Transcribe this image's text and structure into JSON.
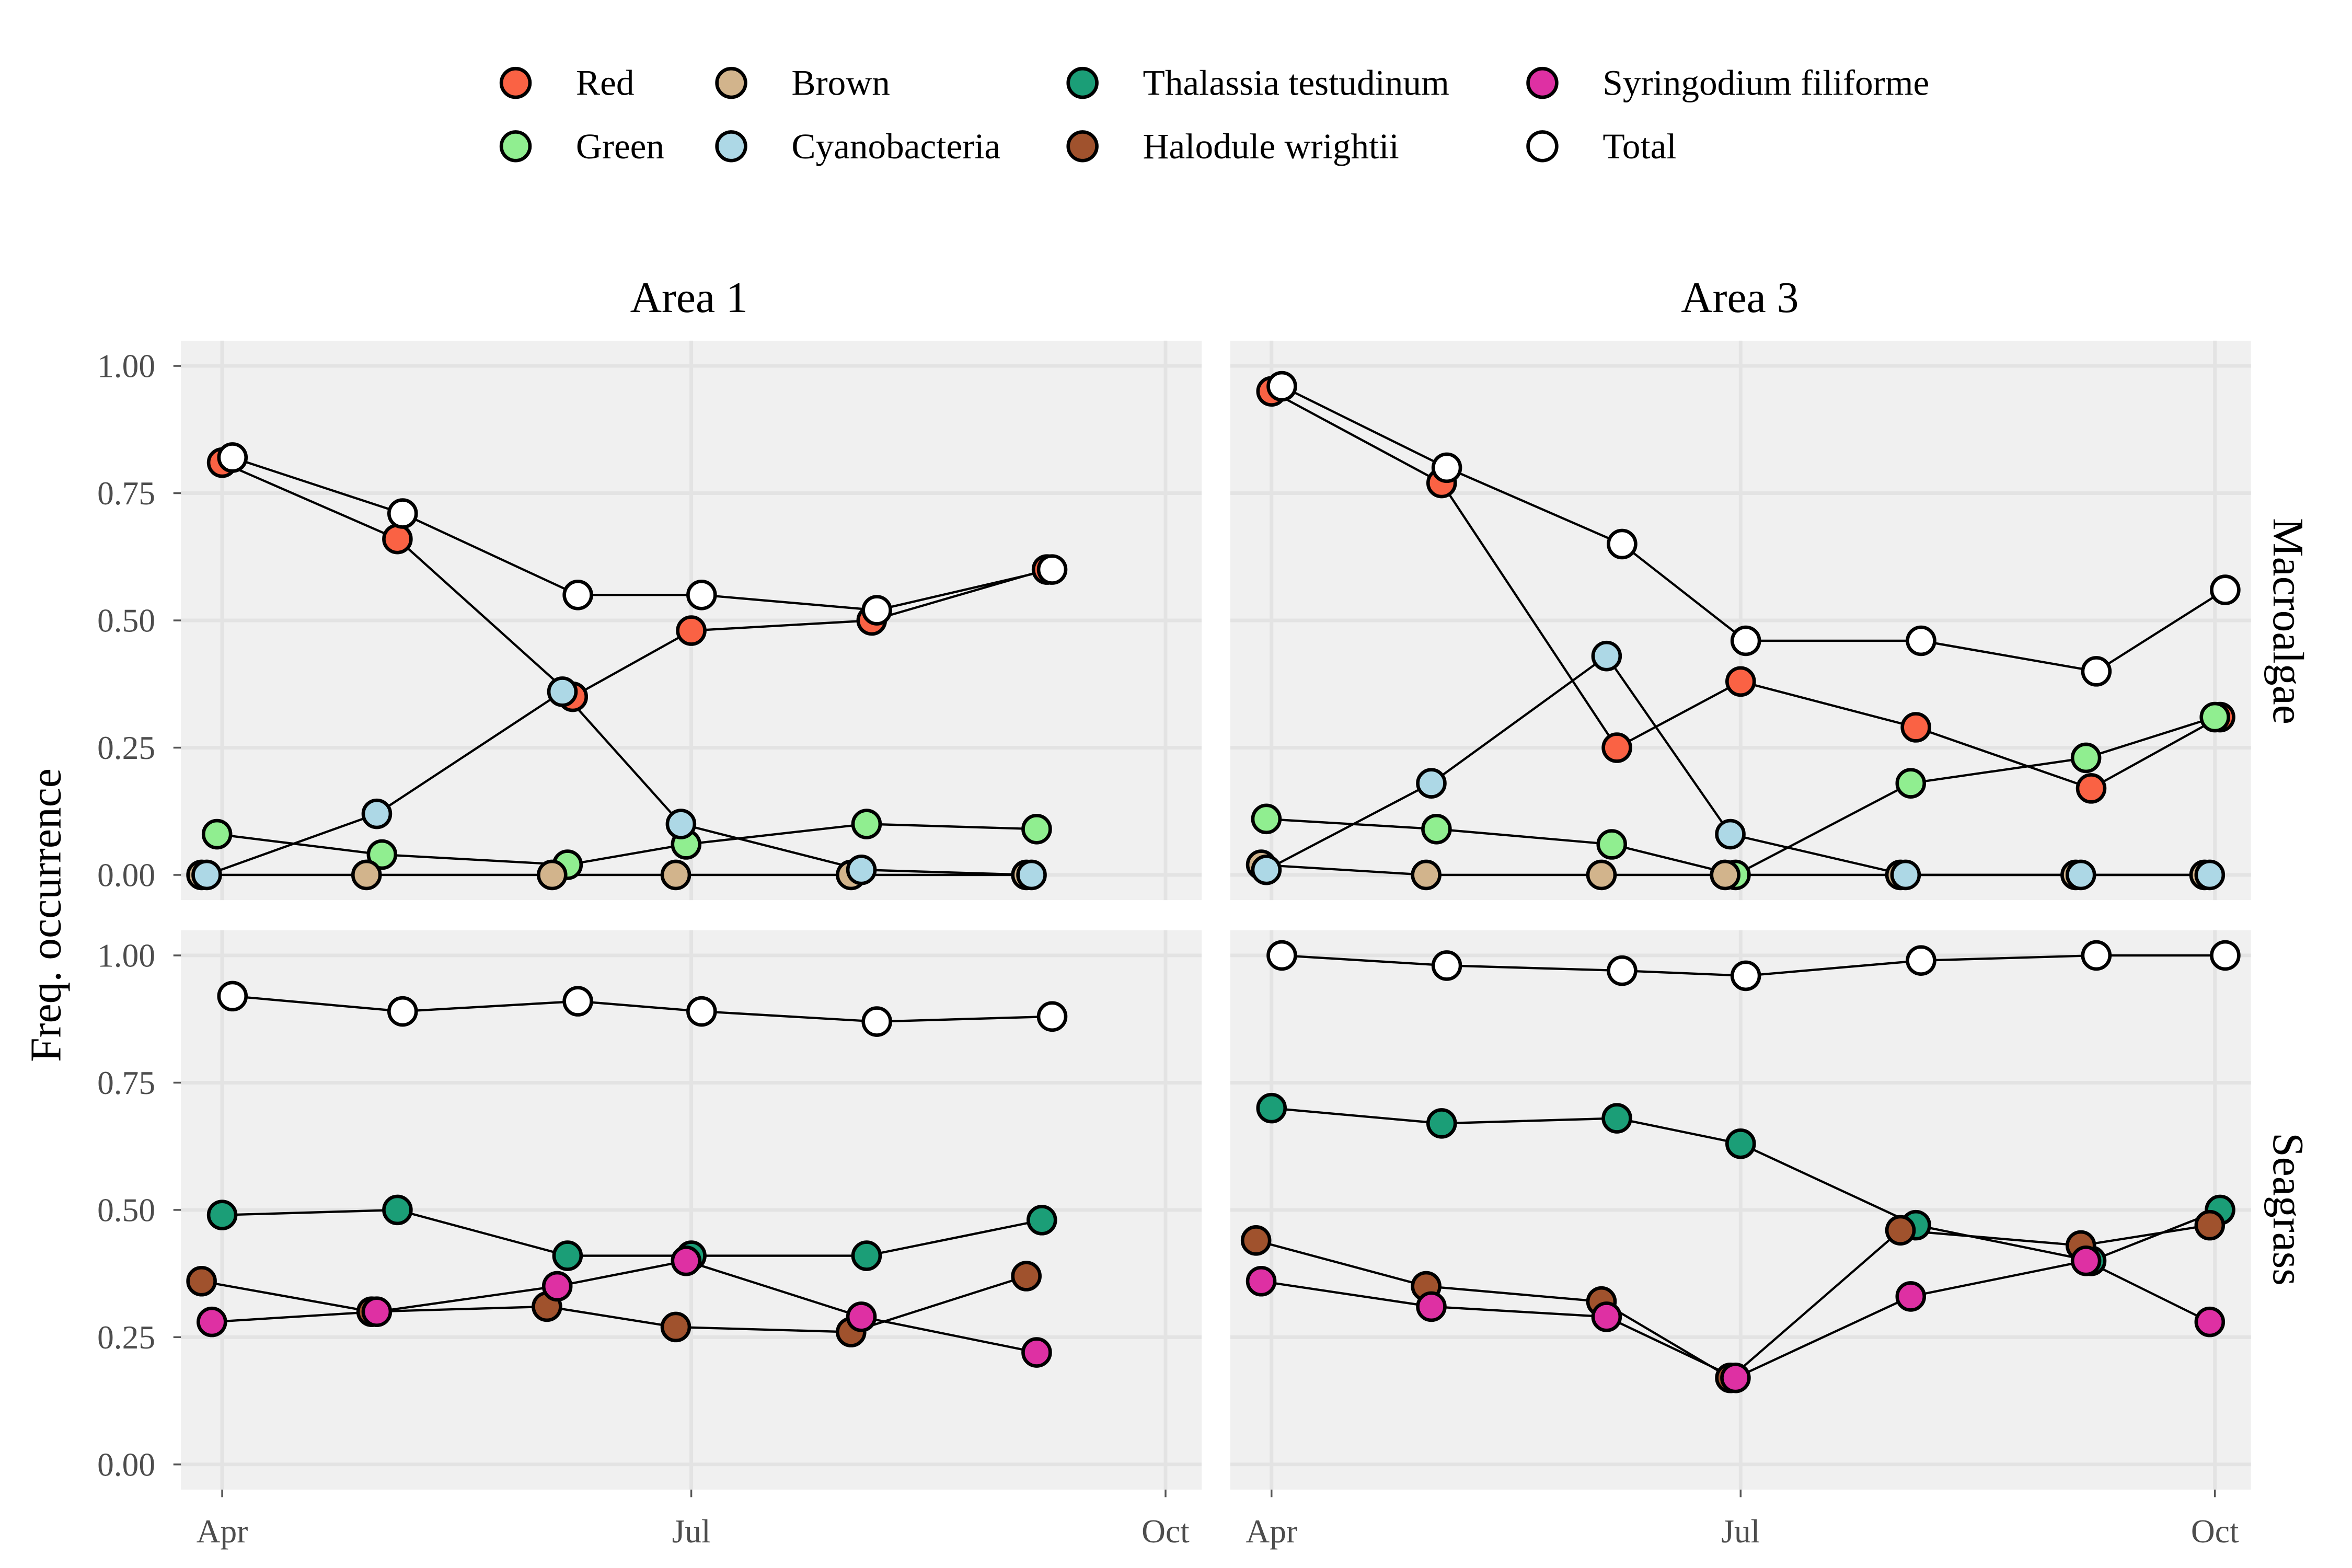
{
  "chart_data": {
    "type": "scatter",
    "ylabel": "Freq. occurrence",
    "xlabel": "",
    "x_ticks": [
      "Apr",
      "Jul",
      "Oct"
    ],
    "y_ticks": [
      "0.00",
      "0.25",
      "0.50",
      "0.75",
      "1.00"
    ],
    "ylim": [
      0,
      1
    ],
    "xlim": [
      "2021-03-24",
      "2021-10-08"
    ],
    "grid": true,
    "legend_position": "top",
    "column_strips": [
      "Area 1",
      "Area 3"
    ],
    "row_strips": [
      "Macroalgae",
      "Seagrass"
    ],
    "legend": [
      {
        "name": "Red",
        "color": "#FA6244"
      },
      {
        "name": "Green",
        "color": "#90EE90"
      },
      {
        "name": "Brown",
        "color": "#D2B48C"
      },
      {
        "name": "Cyanobacteria",
        "color": "#ADD8E6"
      },
      {
        "name": "Thalassia testudinum",
        "color": "#1B9E77"
      },
      {
        "name": "Halodule wrightii",
        "color": "#A0522D"
      },
      {
        "name": "Syringodium filiforme",
        "color": "#DE30A3"
      },
      {
        "name": "Total",
        "color": "#FFFFFF"
      }
    ],
    "panels": [
      {
        "area": "Area 1",
        "group": "Macroalgae",
        "series": [
          {
            "name": "Red",
            "color": "#FA6244",
            "x": [
              "2021-04-01",
              "2021-05-05",
              "2021-06-08",
              "2021-07-01",
              "2021-08-05",
              "2021-09-08"
            ],
            "y": [
              0.81,
              0.66,
              0.35,
              0.48,
              0.5,
              0.6
            ]
          },
          {
            "name": "Green",
            "color": "#90EE90",
            "x": [
              "2021-03-31",
              "2021-05-02",
              "2021-06-07",
              "2021-06-30",
              "2021-08-04",
              "2021-09-06"
            ],
            "y": [
              0.08,
              0.04,
              0.02,
              0.06,
              0.1,
              0.09
            ]
          },
          {
            "name": "Brown",
            "color": "#D2B48C",
            "x": [
              "2021-03-28",
              "2021-04-29",
              "2021-06-04",
              "2021-06-28",
              "2021-08-01",
              "2021-09-04"
            ],
            "y": [
              0.0,
              0.0,
              0.0,
              0.0,
              0.0,
              0.0
            ]
          },
          {
            "name": "Cyanobacteria",
            "color": "#ADD8E6",
            "x": [
              "2021-03-29",
              "2021-05-01",
              "2021-06-06",
              "2021-06-29",
              "2021-08-03",
              "2021-09-05"
            ],
            "y": [
              0.0,
              0.12,
              0.36,
              0.1,
              0.01,
              0.0
            ]
          },
          {
            "name": "Total",
            "color": "#FFFFFF",
            "x": [
              "2021-04-03",
              "2021-05-06",
              "2021-06-09",
              "2021-07-03",
              "2021-08-06",
              "2021-09-09"
            ],
            "y": [
              0.82,
              0.71,
              0.55,
              0.55,
              0.52,
              0.6
            ]
          }
        ]
      },
      {
        "area": "Area 3",
        "group": "Macroalgae",
        "series": [
          {
            "name": "Red",
            "color": "#FA6244",
            "x": [
              "2021-04-01",
              "2021-05-04",
              "2021-06-07",
              "2021-07-01",
              "2021-08-04",
              "2021-09-07",
              "2021-10-02"
            ],
            "y": [
              0.95,
              0.77,
              0.25,
              0.38,
              0.29,
              0.17,
              0.31
            ]
          },
          {
            "name": "Green",
            "color": "#90EE90",
            "x": [
              "2021-03-31",
              "2021-05-03",
              "2021-06-06",
              "2021-06-30",
              "2021-08-03",
              "2021-09-06",
              "2021-10-01"
            ],
            "y": [
              0.11,
              0.09,
              0.06,
              0.0,
              0.18,
              0.23,
              0.31
            ]
          },
          {
            "name": "Brown",
            "color": "#D2B48C",
            "x": [
              "2021-03-30",
              "2021-05-01",
              "2021-06-04",
              "2021-06-28",
              "2021-08-01",
              "2021-09-04",
              "2021-09-29"
            ],
            "y": [
              0.02,
              0.0,
              0.0,
              0.0,
              0.0,
              0.0,
              0.0
            ]
          },
          {
            "name": "Cyanobacteria",
            "color": "#ADD8E6",
            "x": [
              "2021-03-31",
              "2021-05-02",
              "2021-06-05",
              "2021-06-29",
              "2021-08-02",
              "2021-09-05",
              "2021-09-30"
            ],
            "y": [
              0.01,
              0.18,
              0.43,
              0.08,
              0.0,
              0.0,
              0.0
            ]
          },
          {
            "name": "Total",
            "color": "#FFFFFF",
            "x": [
              "2021-04-03",
              "2021-05-05",
              "2021-06-08",
              "2021-07-02",
              "2021-08-05",
              "2021-09-08",
              "2021-10-03"
            ],
            "y": [
              0.96,
              0.8,
              0.65,
              0.46,
              0.46,
              0.4,
              0.56
            ]
          }
        ]
      },
      {
        "area": "Area 1",
        "group": "Seagrass",
        "series": [
          {
            "name": "Thalassia testudinum",
            "color": "#1B9E77",
            "x": [
              "2021-04-01",
              "2021-05-05",
              "2021-06-07",
              "2021-07-01",
              "2021-08-04",
              "2021-09-07"
            ],
            "y": [
              0.49,
              0.5,
              0.41,
              0.41,
              0.41,
              0.48
            ]
          },
          {
            "name": "Halodule wrightii",
            "color": "#A0522D",
            "x": [
              "2021-03-28",
              "2021-04-30",
              "2021-06-03",
              "2021-06-28",
              "2021-08-01",
              "2021-09-04"
            ],
            "y": [
              0.36,
              0.3,
              0.31,
              0.27,
              0.26,
              0.37
            ]
          },
          {
            "name": "Syringodium filiforme",
            "color": "#DE30A3",
            "x": [
              "2021-03-30",
              "2021-05-01",
              "2021-06-05",
              "2021-06-30",
              "2021-08-03",
              "2021-09-06"
            ],
            "y": [
              0.28,
              0.3,
              0.35,
              0.4,
              0.29,
              0.22
            ]
          },
          {
            "name": "Total",
            "color": "#FFFFFF",
            "x": [
              "2021-04-03",
              "2021-05-06",
              "2021-06-09",
              "2021-07-03",
              "2021-08-06",
              "2021-09-09"
            ],
            "y": [
              0.92,
              0.89,
              0.91,
              0.89,
              0.87,
              0.88
            ]
          }
        ]
      },
      {
        "area": "Area 3",
        "group": "Seagrass",
        "series": [
          {
            "name": "Thalassia testudinum",
            "color": "#1B9E77",
            "x": [
              "2021-04-01",
              "2021-05-04",
              "2021-06-07",
              "2021-07-01",
              "2021-08-04",
              "2021-09-07",
              "2021-10-02"
            ],
            "y": [
              0.7,
              0.67,
              0.68,
              0.63,
              0.47,
              0.4,
              0.5
            ]
          },
          {
            "name": "Halodule wrightii",
            "color": "#A0522D",
            "x": [
              "2021-03-29",
              "2021-05-01",
              "2021-06-04",
              "2021-06-29",
              "2021-08-01",
              "2021-09-05",
              "2021-09-30"
            ],
            "y": [
              0.44,
              0.35,
              0.32,
              0.17,
              0.46,
              0.43,
              0.47
            ]
          },
          {
            "name": "Syringodium filiforme",
            "color": "#DE30A3",
            "x": [
              "2021-03-30",
              "2021-05-02",
              "2021-06-05",
              "2021-06-30",
              "2021-08-03",
              "2021-09-06",
              "2021-09-30"
            ],
            "y": [
              0.36,
              0.31,
              0.29,
              0.17,
              0.33,
              0.4,
              0.28
            ]
          },
          {
            "name": "Total",
            "color": "#FFFFFF",
            "x": [
              "2021-04-03",
              "2021-05-05",
              "2021-06-08",
              "2021-07-02",
              "2021-08-05",
              "2021-09-08",
              "2021-10-03"
            ],
            "y": [
              1.0,
              0.98,
              0.97,
              0.96,
              0.99,
              1.0,
              1.0
            ]
          }
        ]
      }
    ]
  }
}
